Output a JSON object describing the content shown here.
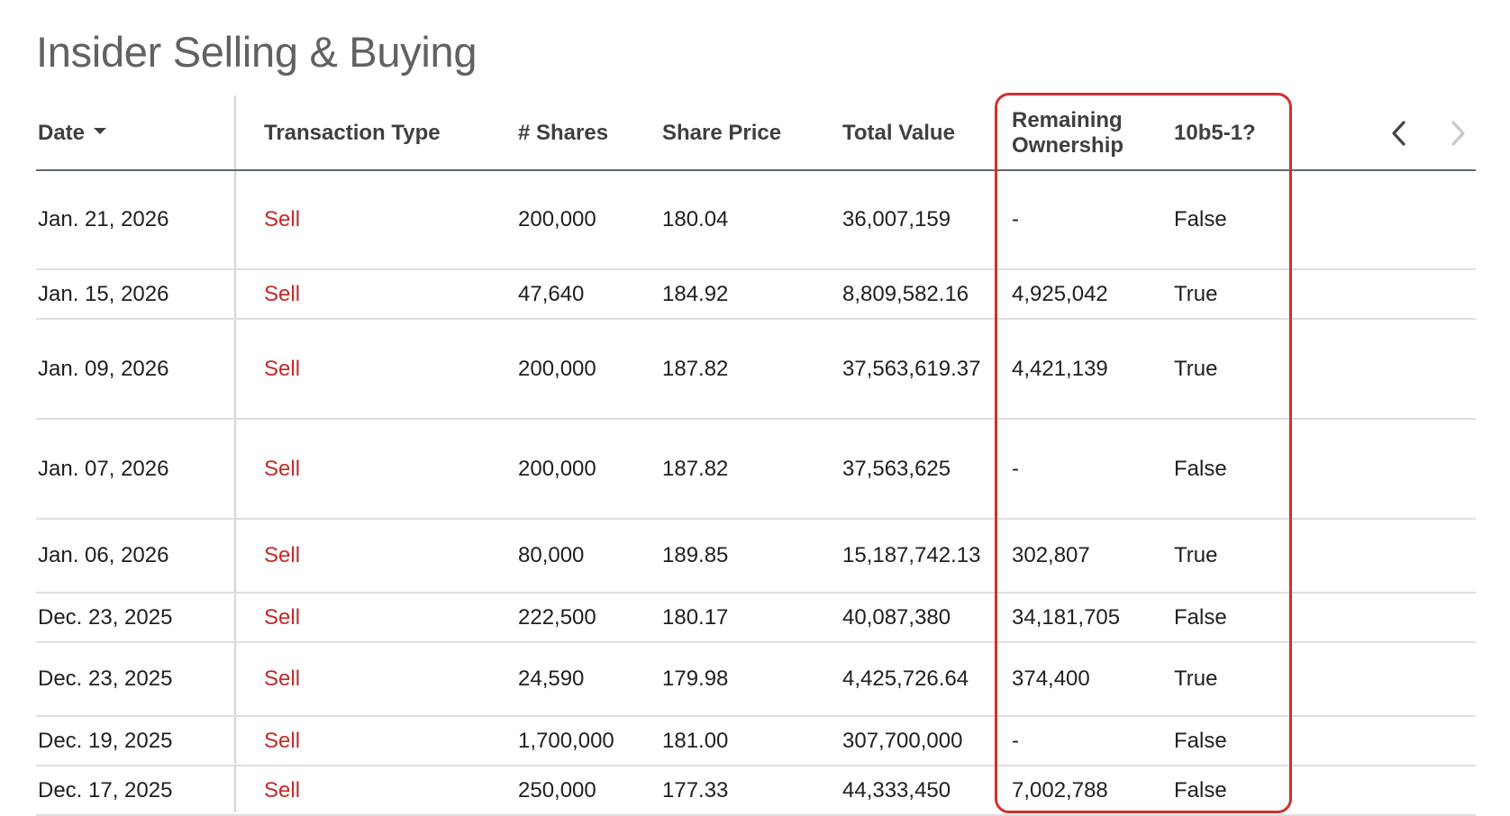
{
  "page": {
    "title": "Insider Selling & Buying"
  },
  "table": {
    "headers": {
      "date": "Date",
      "transaction_type": "Transaction Type",
      "shares": "# Shares",
      "share_price": "Share Price",
      "total_value": "Total Value",
      "remaining_ownership_line1": "Remaining",
      "remaining_ownership_line2": "Ownership",
      "plan_10b5": "10b5-1?"
    },
    "sort": {
      "column": "date",
      "direction": "descending"
    },
    "pagination": {
      "prev_icon": "chevron-left-icon",
      "next_icon": "chevron-right-icon",
      "next_disabled": true
    },
    "rows": [
      {
        "date": "Jan. 21, 2026",
        "type": "Sell",
        "shares": "200,000",
        "price": "180.04",
        "total": "36,007,159",
        "ownership": "-",
        "plan": "False"
      },
      {
        "date": "Jan. 15, 2026",
        "type": "Sell",
        "shares": "47,640",
        "price": "184.92",
        "total": "8,809,582.16",
        "ownership": "4,925,042",
        "plan": "True"
      },
      {
        "date": "Jan. 09, 2026",
        "type": "Sell",
        "shares": "200,000",
        "price": "187.82",
        "total": "37,563,619.37",
        "ownership": "4,421,139",
        "plan": "True"
      },
      {
        "date": "Jan. 07, 2026",
        "type": "Sell",
        "shares": "200,000",
        "price": "187.82",
        "total": "37,563,625",
        "ownership": "-",
        "plan": "False"
      },
      {
        "date": "Jan. 06, 2026",
        "type": "Sell",
        "shares": "80,000",
        "price": "189.85",
        "total": "15,187,742.13",
        "ownership": "302,807",
        "plan": "True"
      },
      {
        "date": "Dec. 23, 2025",
        "type": "Sell",
        "shares": "222,500",
        "price": "180.17",
        "total": "40,087,380",
        "ownership": "34,181,705",
        "plan": "False"
      },
      {
        "date": "Dec. 23, 2025",
        "type": "Sell",
        "shares": "24,590",
        "price": "179.98",
        "total": "4,425,726.64",
        "ownership": "374,400",
        "plan": "True"
      },
      {
        "date": "Dec. 19, 2025",
        "type": "Sell",
        "shares": "1,700,000",
        "price": "181.00",
        "total": "307,700,000",
        "ownership": "-",
        "plan": "False"
      },
      {
        "date": "Dec. 17, 2025",
        "type": "Sell",
        "shares": "250,000",
        "price": "177.33",
        "total": "44,333,450",
        "ownership": "7,002,788",
        "plan": "False"
      }
    ]
  },
  "colors": {
    "sell": "#c62828",
    "highlight_border": "#d32f2f",
    "title": "#616161"
  }
}
